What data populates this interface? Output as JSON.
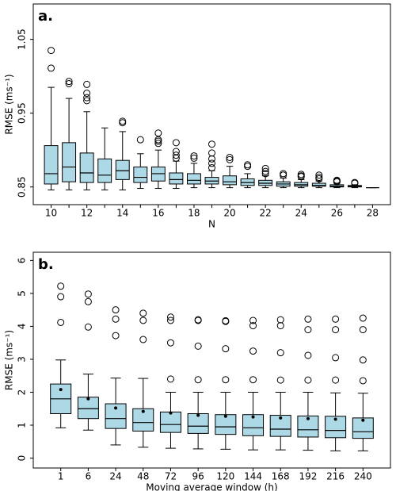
{
  "chart_data": [
    {
      "type": "box",
      "panel_label": "a.",
      "ylabel": "RMSE (ms⁻¹)",
      "xlabel": "N",
      "color": "#add8e6",
      "categories": [
        "10",
        null,
        "12",
        null,
        "14",
        null,
        "16",
        null,
        "18",
        null,
        "20",
        null,
        "22",
        null,
        "24",
        null,
        "26",
        null,
        "28"
      ],
      "ylim": [
        0.826,
        1.098
      ],
      "yticks": [
        0.85,
        0.95,
        1.05
      ],
      "boxes": [
        {
          "min": 0.846,
          "q1": 0.854,
          "median": 0.868,
          "q3": 0.906,
          "max": 0.985,
          "outliers": [
            1.035,
            1.011
          ]
        },
        {
          "min": 0.846,
          "q1": 0.857,
          "median": 0.877,
          "q3": 0.91,
          "max": 0.97,
          "outliers": [
            0.993,
            0.99
          ]
        },
        {
          "min": 0.846,
          "q1": 0.856,
          "median": 0.869,
          "q3": 0.896,
          "max": 0.952,
          "outliers": [
            0.989,
            0.977,
            0.971,
            0.967
          ]
        },
        {
          "min": 0.846,
          "q1": 0.856,
          "median": 0.866,
          "q3": 0.888,
          "max": 0.93,
          "outliers": []
        },
        {
          "min": 0.846,
          "q1": 0.86,
          "median": 0.872,
          "q3": 0.886,
          "max": 0.925,
          "outliers": [
            0.939,
            0.937
          ]
        },
        {
          "min": 0.848,
          "q1": 0.856,
          "median": 0.863,
          "q3": 0.877,
          "max": 0.895,
          "outliers": [
            0.914
          ]
        },
        {
          "min": 0.848,
          "q1": 0.858,
          "median": 0.868,
          "q3": 0.877,
          "max": 0.9,
          "outliers": [
            0.923,
            0.914,
            0.912,
            0.909
          ]
        },
        {
          "min": 0.848,
          "q1": 0.854,
          "median": 0.86,
          "q3": 0.869,
          "max": 0.885,
          "outliers": [
            0.91,
            0.898,
            0.893,
            0.889
          ]
        },
        {
          "min": 0.849,
          "q1": 0.854,
          "median": 0.859,
          "q3": 0.868,
          "max": 0.882,
          "outliers": [
            0.892,
            0.889
          ]
        },
        {
          "min": 0.849,
          "q1": 0.854,
          "median": 0.858,
          "q3": 0.863,
          "max": 0.872,
          "outliers": [
            0.908,
            0.896,
            0.888,
            0.882,
            0.876
          ]
        },
        {
          "min": 0.849,
          "q1": 0.853,
          "median": 0.857,
          "q3": 0.865,
          "max": 0.878,
          "outliers": [
            0.89,
            0.887
          ]
        },
        {
          "min": 0.849,
          "q1": 0.852,
          "median": 0.856,
          "q3": 0.861,
          "max": 0.868,
          "outliers": [
            0.88,
            0.878
          ]
        },
        {
          "min": 0.849,
          "q1": 0.852,
          "median": 0.855,
          "q3": 0.859,
          "max": 0.865,
          "outliers": [
            0.875,
            0.871,
            0.868
          ]
        },
        {
          "min": 0.849,
          "q1": 0.851,
          "median": 0.854,
          "q3": 0.857,
          "max": 0.862,
          "outliers": [
            0.868,
            0.866
          ]
        },
        {
          "min": 0.849,
          "q1": 0.851,
          "median": 0.853,
          "q3": 0.856,
          "max": 0.86,
          "outliers": [
            0.867,
            0.865,
            0.864
          ]
        },
        {
          "min": 0.849,
          "q1": 0.851,
          "median": 0.852,
          "q3": 0.855,
          "max": 0.858,
          "outliers": [
            0.866,
            0.863,
            0.861
          ]
        },
        {
          "min": 0.849,
          "q1": 0.85,
          "median": 0.851,
          "q3": 0.853,
          "max": 0.855,
          "outliers": [
            0.859,
            0.858,
            0.857
          ]
        },
        {
          "min": 0.849,
          "q1": 0.85,
          "median": 0.851,
          "q3": 0.852,
          "max": 0.853,
          "outliers": [
            0.856,
            0.855
          ]
        },
        {
          "min": 0.849,
          "q1": 0.849,
          "median": 0.849,
          "q3": 0.849,
          "max": 0.849,
          "outliers": []
        }
      ]
    },
    {
      "type": "box",
      "panel_label": "b.",
      "ylabel": "RMSE (ms⁻¹)",
      "xlabel": "Moving average window (h)",
      "color": "#add8e6",
      "categories": [
        "1",
        "6",
        "24",
        "48",
        "72",
        "96",
        "120",
        "144",
        "168",
        "192",
        "216",
        "240"
      ],
      "ylim": [
        -0.3,
        6.25
      ],
      "yticks": [
        0,
        1,
        2,
        3,
        4,
        5,
        6
      ],
      "boxes": [
        {
          "min": 0.92,
          "q1": 1.35,
          "median": 1.8,
          "q3": 2.25,
          "max": 2.98,
          "mean": 2.08,
          "outliers": [
            5.22,
            4.9,
            4.12
          ]
        },
        {
          "min": 0.85,
          "q1": 1.2,
          "median": 1.5,
          "q3": 1.85,
          "max": 2.55,
          "mean": 1.8,
          "outliers": [
            4.98,
            4.75,
            3.98
          ]
        },
        {
          "min": 0.4,
          "q1": 0.9,
          "median": 1.2,
          "q3": 1.65,
          "max": 2.43,
          "mean": 1.52,
          "outliers": [
            4.5,
            4.22,
            3.72
          ]
        },
        {
          "min": 0.33,
          "q1": 0.82,
          "median": 1.08,
          "q3": 1.5,
          "max": 2.42,
          "mean": 1.42,
          "outliers": [
            4.4,
            4.18,
            3.6
          ]
        },
        {
          "min": 0.3,
          "q1": 0.78,
          "median": 1.02,
          "q3": 1.4,
          "max": 2.0,
          "mean": 1.37,
          "outliers": [
            4.28,
            4.18,
            3.5,
            2.4
          ]
        },
        {
          "min": 0.28,
          "q1": 0.75,
          "median": 0.97,
          "q3": 1.35,
          "max": 2.0,
          "mean": 1.3,
          "outliers": [
            4.2,
            4.18,
            3.4,
            2.38
          ]
        },
        {
          "min": 0.27,
          "q1": 0.72,
          "median": 0.95,
          "q3": 1.32,
          "max": 2.0,
          "mean": 1.27,
          "outliers": [
            4.17,
            4.15,
            3.32,
            2.38
          ]
        },
        {
          "min": 0.25,
          "q1": 0.68,
          "median": 0.92,
          "q3": 1.32,
          "max": 2.0,
          "mean": 1.25,
          "outliers": [
            4.18,
            4.02,
            3.25,
            2.38
          ]
        },
        {
          "min": 0.25,
          "q1": 0.66,
          "median": 0.88,
          "q3": 1.3,
          "max": 2.0,
          "mean": 1.22,
          "outliers": [
            4.2,
            4.02,
            3.2,
            2.37
          ]
        },
        {
          "min": 0.24,
          "q1": 0.64,
          "median": 0.86,
          "q3": 1.28,
          "max": 2.0,
          "mean": 1.2,
          "outliers": [
            4.22,
            3.9,
            3.12,
            2.37
          ]
        },
        {
          "min": 0.22,
          "q1": 0.62,
          "median": 0.84,
          "q3": 1.27,
          "max": 1.98,
          "mean": 1.18,
          "outliers": [
            4.22,
            3.9,
            3.05,
            2.37
          ]
        },
        {
          "min": 0.22,
          "q1": 0.6,
          "median": 0.8,
          "q3": 1.22,
          "max": 1.97,
          "mean": 1.15,
          "outliers": [
            4.25,
            3.9,
            2.98,
            2.35
          ]
        }
      ]
    }
  ]
}
